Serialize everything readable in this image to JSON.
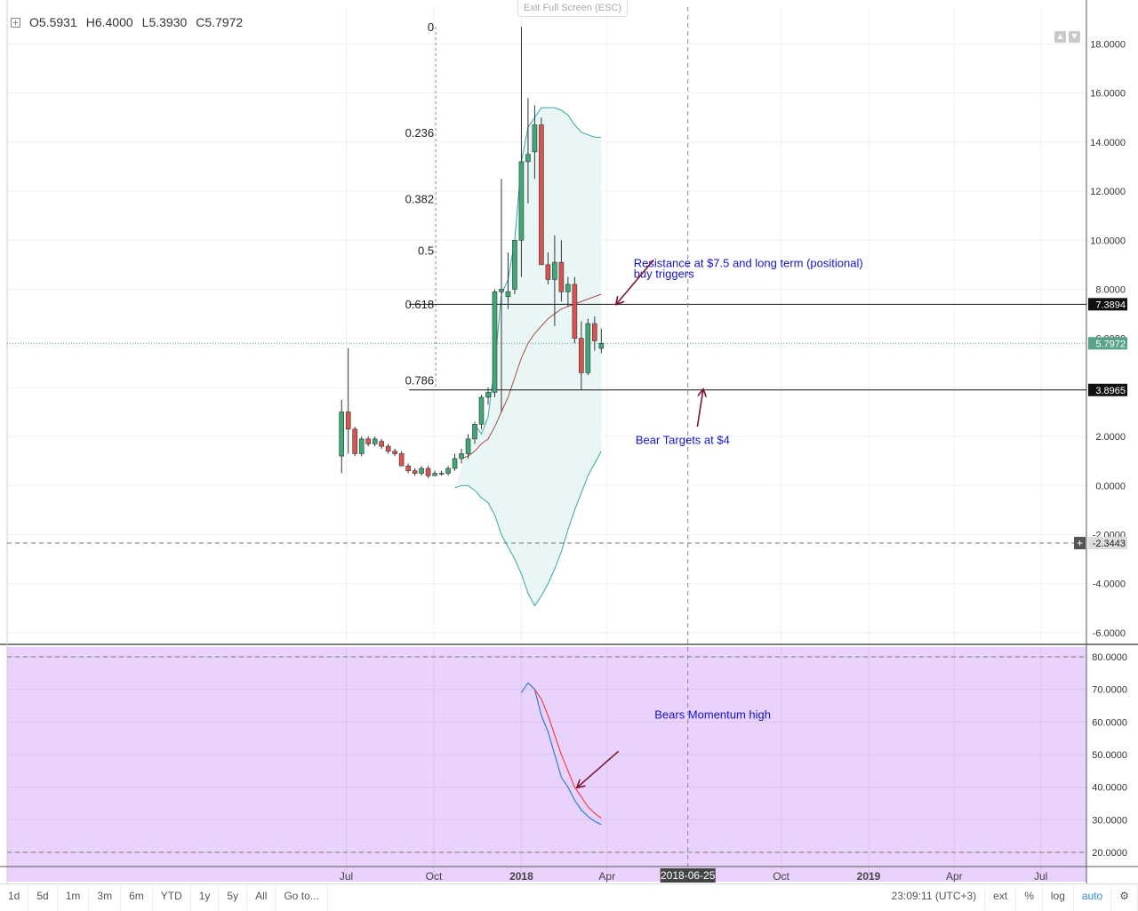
{
  "header": {
    "ohlc": {
      "o": "O5.5931",
      "h": "H6.4000",
      "l": "L5.3930",
      "c": "C5.7972"
    },
    "exit_fullscreen": "Exit Full Screen (ESC)"
  },
  "colors": {
    "up": "#3fa876",
    "down": "#d9534f",
    "bb_line": "#37a6a6",
    "bb_fill": "#eaf6f6",
    "ma": "#a84a4a",
    "rsi_bg": "#e9d2fb",
    "rsi_k": "#2e7de0",
    "rsi_d": "#ee4444",
    "annotation": "#1414c8",
    "arrow": "#7a1430"
  },
  "chart_data": {
    "type": "candlestick",
    "price_axis": {
      "ylim": [
        -6.4,
        19.5
      ],
      "ticks": [
        18,
        16,
        14,
        12,
        10,
        8,
        6,
        4,
        2,
        0,
        -2,
        -4,
        -6
      ],
      "tick_labels": [
        "18.0000",
        "16.0000",
        "14.0000",
        "12.0000",
        "10.0000",
        "8.0000",
        "6.0000",
        "4.0000",
        "2.0000",
        "0.0000",
        "-2.0000",
        "-4.0000",
        "-6.0000"
      ]
    },
    "time_axis": {
      "labels": [
        {
          "label": "Jul",
          "date": "2017-07-01"
        },
        {
          "label": "Oct",
          "date": "2017-10-01"
        },
        {
          "label": "2018",
          "date": "2018-01-01"
        },
        {
          "label": "Apr",
          "date": "2018-04-01"
        },
        {
          "label": "2018-06-25",
          "date": "2018-06-25"
        },
        {
          "label": "Oct",
          "date": "2018-10-01"
        },
        {
          "label": "2019",
          "date": "2019-01-01"
        },
        {
          "label": "Apr",
          "date": "2019-04-01"
        },
        {
          "label": "Jul",
          "date": "2019-07-01"
        }
      ],
      "crosshair_date": "2018-06-25"
    },
    "candles": [
      {
        "date": "2017-06-26",
        "o": 1.2,
        "h": 3.5,
        "l": 0.5,
        "c": 3.0
      },
      {
        "date": "2017-07-03",
        "o": 3.0,
        "h": 5.6,
        "l": 1.3,
        "c": 2.3
      },
      {
        "date": "2017-07-10",
        "o": 2.3,
        "h": 2.4,
        "l": 1.2,
        "c": 1.3
      },
      {
        "date": "2017-07-17",
        "o": 1.3,
        "h": 2.0,
        "l": 1.2,
        "c": 1.9
      },
      {
        "date": "2017-07-24",
        "o": 1.9,
        "h": 2.0,
        "l": 1.6,
        "c": 1.7
      },
      {
        "date": "2017-07-31",
        "o": 1.7,
        "h": 2.0,
        "l": 1.6,
        "c": 1.9
      },
      {
        "date": "2017-08-07",
        "o": 1.8,
        "h": 1.9,
        "l": 1.5,
        "c": 1.6
      },
      {
        "date": "2017-08-14",
        "o": 1.6,
        "h": 1.7,
        "l": 1.3,
        "c": 1.4
      },
      {
        "date": "2017-08-21",
        "o": 1.4,
        "h": 1.5,
        "l": 1.2,
        "c": 1.3
      },
      {
        "date": "2017-08-28",
        "o": 1.3,
        "h": 1.4,
        "l": 0.8,
        "c": 0.8
      },
      {
        "date": "2017-09-04",
        "o": 0.8,
        "h": 0.9,
        "l": 0.5,
        "c": 0.6
      },
      {
        "date": "2017-09-11",
        "o": 0.6,
        "h": 0.7,
        "l": 0.4,
        "c": 0.5
      },
      {
        "date": "2017-09-18",
        "o": 0.5,
        "h": 0.8,
        "l": 0.4,
        "c": 0.7
      },
      {
        "date": "2017-09-25",
        "o": 0.7,
        "h": 0.8,
        "l": 0.3,
        "c": 0.4
      },
      {
        "date": "2017-10-02",
        "o": 0.4,
        "h": 0.6,
        "l": 0.4,
        "c": 0.5
      },
      {
        "date": "2017-10-09",
        "o": 0.5,
        "h": 0.6,
        "l": 0.4,
        "c": 0.5
      },
      {
        "date": "2017-10-16",
        "o": 0.5,
        "h": 0.8,
        "l": 0.4,
        "c": 0.7
      },
      {
        "date": "2017-10-23",
        "o": 0.7,
        "h": 1.3,
        "l": 0.6,
        "c": 1.1
      },
      {
        "date": "2017-10-30",
        "o": 1.1,
        "h": 1.5,
        "l": 0.9,
        "c": 1.3
      },
      {
        "date": "2017-11-06",
        "o": 1.3,
        "h": 2.1,
        "l": 1.1,
        "c": 1.9
      },
      {
        "date": "2017-11-13",
        "o": 1.9,
        "h": 2.6,
        "l": 1.7,
        "c": 2.5
      },
      {
        "date": "2017-11-20",
        "o": 2.5,
        "h": 3.7,
        "l": 2.3,
        "c": 3.6
      },
      {
        "date": "2017-11-27",
        "o": 3.6,
        "h": 4.0,
        "l": 3.3,
        "c": 3.8
      },
      {
        "date": "2017-12-04",
        "o": 3.8,
        "h": 8.0,
        "l": 3.6,
        "c": 7.9
      },
      {
        "date": "2017-12-11",
        "o": 7.9,
        "h": 12.5,
        "l": 3.0,
        "c": 8.0
      },
      {
        "date": "2017-12-18",
        "o": 7.7,
        "h": 9.5,
        "l": 7.2,
        "c": 7.9
      },
      {
        "date": "2017-12-25",
        "o": 8.0,
        "h": 10.0,
        "l": 7.8,
        "c": 10.0
      },
      {
        "date": "2018-01-01",
        "o": 10.0,
        "h": 18.7,
        "l": 8.5,
        "c": 13.2
      },
      {
        "date": "2018-01-08",
        "o": 13.2,
        "h": 15.8,
        "l": 11.5,
        "c": 13.5
      },
      {
        "date": "2018-01-15",
        "o": 13.6,
        "h": 15.5,
        "l": 12.5,
        "c": 14.7
      },
      {
        "date": "2018-01-22",
        "o": 14.7,
        "h": 15.0,
        "l": 9.0,
        "c": 9.0
      },
      {
        "date": "2018-01-29",
        "o": 9.0,
        "h": 9.5,
        "l": 8.2,
        "c": 8.4
      },
      {
        "date": "2018-02-05",
        "o": 8.4,
        "h": 10.2,
        "l": 6.5,
        "c": 9.1
      },
      {
        "date": "2018-02-12",
        "o": 9.1,
        "h": 10.0,
        "l": 7.5,
        "c": 7.9
      },
      {
        "date": "2018-02-19",
        "o": 7.9,
        "h": 8.5,
        "l": 7.3,
        "c": 8.2
      },
      {
        "date": "2018-02-26",
        "o": 8.2,
        "h": 8.5,
        "l": 5.8,
        "c": 6.0
      },
      {
        "date": "2018-03-05",
        "o": 6.0,
        "h": 6.7,
        "l": 3.9,
        "c": 4.6
      },
      {
        "date": "2018-03-12",
        "o": 4.6,
        "h": 6.8,
        "l": 4.5,
        "c": 6.6
      },
      {
        "date": "2018-03-19",
        "o": 6.6,
        "h": 6.9,
        "l": 5.5,
        "c": 5.9
      },
      {
        "date": "2018-03-26",
        "o": 5.5931,
        "h": 6.4,
        "l": 5.393,
        "c": 5.7972
      }
    ],
    "bollinger": {
      "upper": [
        [
          2017,
          11,
          13,
          2.5
        ],
        [
          2017,
          11,
          20,
          2.1
        ],
        [
          2017,
          11,
          27,
          2.8
        ],
        [
          2017,
          12,
          4,
          4.9
        ],
        [
          2017,
          12,
          11,
          7.8
        ],
        [
          2017,
          12,
          18,
          8.4
        ],
        [
          2017,
          12,
          25,
          10.0
        ],
        [
          2018,
          1,
          1,
          13.2
        ],
        [
          2018,
          1,
          8,
          14.6
        ],
        [
          2018,
          1,
          15,
          15.0
        ],
        [
          2018,
          1,
          22,
          15.4
        ],
        [
          2018,
          1,
          29,
          15.4
        ],
        [
          2018,
          2,
          5,
          15.4
        ],
        [
          2018,
          2,
          12,
          15.3
        ],
        [
          2018,
          2,
          19,
          15.1
        ],
        [
          2018,
          2,
          26,
          14.7
        ],
        [
          2018,
          3,
          5,
          14.4
        ],
        [
          2018,
          3,
          12,
          14.3
        ],
        [
          2018,
          3,
          19,
          14.2
        ],
        [
          2018,
          3,
          26,
          14.2
        ]
      ],
      "lower": [
        [
          2017,
          10,
          23,
          -0.1
        ],
        [
          2017,
          10,
          30,
          0.0
        ],
        [
          2017,
          11,
          6,
          0.0
        ],
        [
          2017,
          11,
          13,
          -0.2
        ],
        [
          2017,
          11,
          20,
          -0.5
        ],
        [
          2017,
          11,
          27,
          -0.7
        ],
        [
          2017,
          12,
          4,
          -1.2
        ],
        [
          2017,
          12,
          11,
          -2.0
        ],
        [
          2017,
          12,
          18,
          -2.5
        ],
        [
          2017,
          12,
          25,
          -3.0
        ],
        [
          2018,
          1,
          1,
          -3.6
        ],
        [
          2018,
          1,
          8,
          -4.4
        ],
        [
          2018,
          1,
          15,
          -4.9
        ],
        [
          2018,
          1,
          22,
          -4.5
        ],
        [
          2018,
          1,
          29,
          -4.0
        ],
        [
          2018,
          2,
          5,
          -3.4
        ],
        [
          2018,
          2,
          12,
          -2.7
        ],
        [
          2018,
          2,
          19,
          -1.8
        ],
        [
          2018,
          2,
          26,
          -1.0
        ],
        [
          2018,
          3,
          5,
          -0.3
        ],
        [
          2018,
          3,
          12,
          0.4
        ],
        [
          2018,
          3,
          19,
          0.9
        ],
        [
          2018,
          3,
          26,
          1.4
        ]
      ]
    },
    "moving_average": [
      [
        2017,
        10,
        30,
        1.1
      ],
      [
        2017,
        11,
        6,
        1.2
      ],
      [
        2017,
        11,
        13,
        1.4
      ],
      [
        2017,
        11,
        20,
        1.7
      ],
      [
        2017,
        11,
        27,
        1.9
      ],
      [
        2017,
        12,
        4,
        2.4
      ],
      [
        2017,
        12,
        11,
        3.0
      ],
      [
        2017,
        12,
        18,
        3.6
      ],
      [
        2017,
        12,
        25,
        4.4
      ],
      [
        2018,
        1,
        1,
        5.2
      ],
      [
        2018,
        1,
        8,
        5.8
      ],
      [
        2018,
        1,
        15,
        6.2
      ],
      [
        2018,
        1,
        22,
        6.5
      ],
      [
        2018,
        1,
        29,
        6.8
      ],
      [
        2018,
        2,
        5,
        7.0
      ],
      [
        2018,
        2,
        12,
        7.2
      ],
      [
        2018,
        2,
        19,
        7.3
      ],
      [
        2018,
        2,
        26,
        7.4
      ],
      [
        2018,
        3,
        5,
        7.5
      ],
      [
        2018,
        3,
        12,
        7.6
      ],
      [
        2018,
        3,
        19,
        7.7
      ],
      [
        2018,
        3,
        26,
        7.8
      ]
    ],
    "fibonacci": {
      "levels": [
        {
          "label": "0",
          "value": 18.7
        },
        {
          "label": "0.236",
          "value": 14.4
        },
        {
          "label": "0.382",
          "value": 11.7
        },
        {
          "label": "0.5",
          "value": 9.6
        },
        {
          "label": "0.618",
          "value": 7.4
        },
        {
          "label": "0.786",
          "value": 4.3
        }
      ]
    },
    "horizontal_lines": [
      {
        "value": 7.3894,
        "label": "7.3894",
        "style": "solid"
      },
      {
        "value": 3.8965,
        "label": "3.8965",
        "style": "solid"
      },
      {
        "value": -2.3443,
        "label": "-2.3443",
        "style": "dashed"
      }
    ],
    "last_price": {
      "value": 5.7972,
      "label": "5.7972"
    },
    "annotations": [
      {
        "text_lines": [
          "Resistance at $7.5 and long term (positional)",
          "buy triggers"
        ]
      },
      {
        "text_lines": [
          "Bear Targets at $4"
        ]
      },
      {
        "text_lines": [
          "Bears Momentum high"
        ]
      }
    ],
    "oscillator": {
      "ylim": [
        17,
        83
      ],
      "ticks": [
        80,
        70,
        60,
        50,
        40,
        30,
        20
      ],
      "tick_labels": [
        "80.0000",
        "70.0000",
        "60.0000",
        "50.0000",
        "40.0000",
        "30.0000",
        "20.0000"
      ],
      "bands": [
        80,
        20
      ],
      "k": [
        [
          2018,
          1,
          1,
          69
        ],
        [
          2018,
          1,
          8,
          72
        ],
        [
          2018,
          1,
          15,
          70
        ],
        [
          2018,
          1,
          22,
          62
        ],
        [
          2018,
          1,
          29,
          57
        ],
        [
          2018,
          2,
          5,
          50
        ],
        [
          2018,
          2,
          12,
          43
        ],
        [
          2018,
          2,
          19,
          40
        ],
        [
          2018,
          2,
          26,
          36
        ],
        [
          2018,
          3,
          5,
          33
        ],
        [
          2018,
          3,
          12,
          31
        ],
        [
          2018,
          3,
          19,
          29.5
        ],
        [
          2018,
          3,
          26,
          28.5
        ]
      ],
      "d": [
        [
          2018,
          1,
          15,
          70
        ],
        [
          2018,
          1,
          22,
          67
        ],
        [
          2018,
          1,
          29,
          62
        ],
        [
          2018,
          2,
          5,
          56
        ],
        [
          2018,
          2,
          12,
          50
        ],
        [
          2018,
          2,
          19,
          45
        ],
        [
          2018,
          2,
          26,
          40
        ],
        [
          2018,
          3,
          5,
          37
        ],
        [
          2018,
          3,
          12,
          34
        ],
        [
          2018,
          3,
          19,
          32
        ],
        [
          2018,
          3,
          26,
          30.5
        ]
      ]
    }
  },
  "bottom_toolbar": {
    "ranges": [
      "1d",
      "5d",
      "1m",
      "3m",
      "6m",
      "YTD",
      "1y",
      "5y",
      "All"
    ],
    "goto": "Go to...",
    "clock": "23:09:11 (UTC+3)",
    "right": [
      "ext",
      "%",
      "log",
      "auto"
    ]
  }
}
